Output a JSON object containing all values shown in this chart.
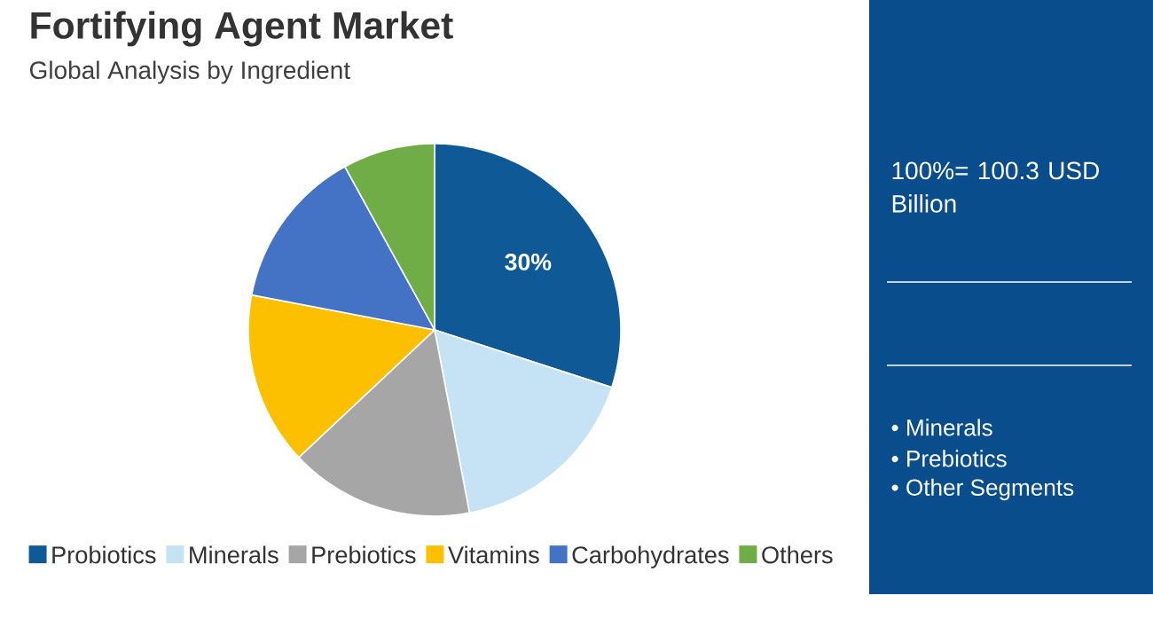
{
  "chart_data": {
    "type": "pie",
    "title": "Fortifying Agent Market",
    "subtitle": "Global Analysis by Ingredient",
    "categories": [
      "Probiotics",
      "Minerals",
      "Prebiotics",
      "Vitamins",
      "Carbohydrates",
      "Others"
    ],
    "values": [
      30,
      17,
      16,
      15,
      14,
      8
    ],
    "colors": [
      "#0f5a96",
      "#c5e3f5",
      "#a6a6a6",
      "#fcc000",
      "#4472c4",
      "#70ad47"
    ],
    "value_labels": [
      "30%",
      null,
      null,
      null,
      null,
      null
    ],
    "legend": "bottom",
    "annotations": [
      "100%= 100.3 USD Billion",
      "• Minerals",
      "• Prebiotics",
      "• Other Segments"
    ]
  }
}
